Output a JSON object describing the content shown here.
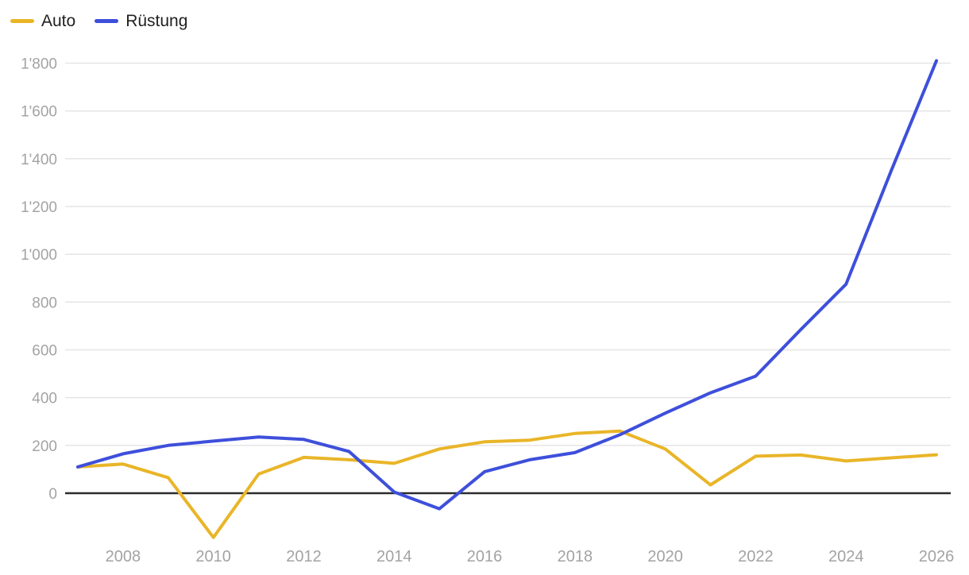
{
  "colors": {
    "background": "#ffffff",
    "auto_line": "#e9b528",
    "ruestung_line": "#3e4fdb",
    "grid_line": "#e6e6e6",
    "zero_axis": "#2b2b2b",
    "tick_text": "#a3a3a3",
    "legend_text": "#212121"
  },
  "legend": {
    "items": [
      {
        "id": "auto",
        "label": "Auto",
        "color": "#e9b528"
      },
      {
        "id": "ruestung",
        "label": "Rüstung",
        "color": "#3e4fdb"
      }
    ]
  },
  "chart_data": {
    "type": "line",
    "title": "",
    "xlabel": "",
    "ylabel": "",
    "grid": "horizontal",
    "legend_position": "top-left",
    "x": [
      2007,
      2008,
      2009,
      2010,
      2011,
      2012,
      2013,
      2014,
      2015,
      2016,
      2017,
      2018,
      2019,
      2020,
      2021,
      2022,
      2023,
      2024,
      2025,
      2026
    ],
    "series": [
      {
        "name": "Auto",
        "color": "#e9b528",
        "values": [
          110,
          122,
          65,
          -185,
          80,
          150,
          140,
          125,
          185,
          215,
          222,
          250,
          260,
          185,
          35,
          155,
          160,
          135,
          148,
          161
        ]
      },
      {
        "name": "Rüstung",
        "color": "#3e4fdb",
        "values": [
          110,
          165,
          200,
          218,
          235,
          225,
          175,
          5,
          -65,
          90,
          140,
          170,
          245,
          335,
          420,
          490,
          685,
          875,
          1350,
          1810
        ]
      }
    ],
    "xlim": [
      2007,
      2026
    ],
    "ylim": [
      -215,
      1860
    ],
    "y_ticks": [
      {
        "value": 0,
        "label": "0"
      },
      {
        "value": 200,
        "label": "200"
      },
      {
        "value": 400,
        "label": "400"
      },
      {
        "value": 600,
        "label": "600"
      },
      {
        "value": 800,
        "label": "800"
      },
      {
        "value": 1000,
        "label": "1'000"
      },
      {
        "value": 1200,
        "label": "1'200"
      },
      {
        "value": 1400,
        "label": "1'400"
      },
      {
        "value": 1600,
        "label": "1'600"
      },
      {
        "value": 1800,
        "label": "1'800"
      }
    ],
    "x_ticks": [
      {
        "value": 2008,
        "label": "2008"
      },
      {
        "value": 2010,
        "label": "2010"
      },
      {
        "value": 2012,
        "label": "2012"
      },
      {
        "value": 2014,
        "label": "2014"
      },
      {
        "value": 2016,
        "label": "2016"
      },
      {
        "value": 2018,
        "label": "2018"
      },
      {
        "value": 2020,
        "label": "2020"
      },
      {
        "value": 2022,
        "label": "2022"
      },
      {
        "value": 2024,
        "label": "2024"
      },
      {
        "value": 2026,
        "label": "2026"
      }
    ]
  }
}
